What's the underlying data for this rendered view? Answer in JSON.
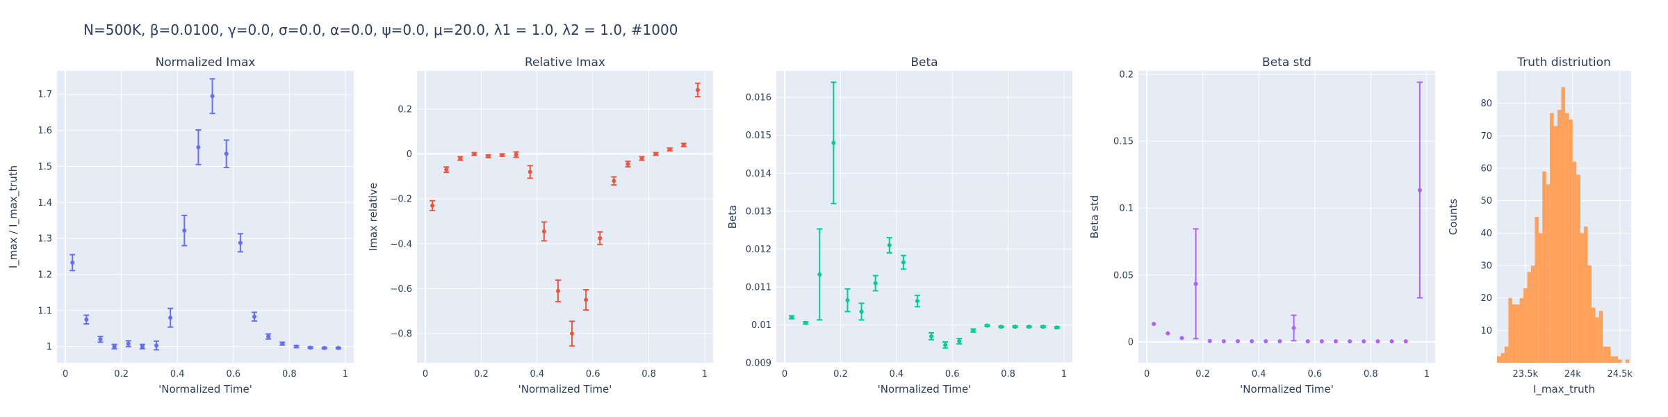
{
  "page": {
    "title": "N=500K, β=0.0100, γ=0.0, σ=0.0,  α=0.0, ψ=0.0, μ=20.0, λ1 = 1.0, λ2 = 1.0, #1000"
  },
  "chart_data": [
    {
      "type": "scatter",
      "title": "Normalized Imax",
      "xlabel": "'Normalized Time'",
      "ylabel": "I_max / I_max_truth",
      "xlim": [
        -0.03,
        1.03
      ],
      "ylim": [
        0.955,
        1.765
      ],
      "xticks": [
        0,
        0.2,
        0.4,
        0.6,
        0.8,
        1
      ],
      "xtick_labels": [
        "0",
        "0.2",
        "0.4",
        "0.6",
        "0.8",
        "1"
      ],
      "yticks": [
        1,
        1.1,
        1.2,
        1.3,
        1.4,
        1.5,
        1.6,
        1.7
      ],
      "ytick_labels": [
        "1",
        "1.1",
        "1.2",
        "1.3",
        "1.4",
        "1.5",
        "1.6",
        "1.7"
      ],
      "color": "#636efa",
      "grid": true,
      "series": [
        {
          "x": [
            0.025,
            0.075,
            0.125,
            0.175,
            0.225,
            0.275,
            0.325,
            0.375,
            0.425,
            0.475,
            0.525,
            0.575,
            0.625,
            0.675,
            0.725,
            0.775,
            0.825,
            0.875,
            0.925,
            0.975
          ],
          "y": [
            1.233,
            1.075,
            1.02,
            1.0,
            1.008,
            1.0,
            1.003,
            1.08,
            1.322,
            1.553,
            1.695,
            1.535,
            1.288,
            1.083,
            1.028,
            1.008,
            1.0,
            0.997,
            0.996,
            0.996
          ],
          "err": [
            0.022,
            0.012,
            0.008,
            0.006,
            0.008,
            0.006,
            0.012,
            0.026,
            0.042,
            0.048,
            0.048,
            0.038,
            0.025,
            0.012,
            0.007,
            0.004,
            0.003,
            0.002,
            0.002,
            0.002
          ]
        }
      ]
    },
    {
      "type": "scatter",
      "title": "Relative Imax",
      "xlabel": "'Normalized Time'",
      "ylabel": "Imax relative",
      "xlim": [
        -0.03,
        1.03
      ],
      "ylim": [
        -0.93,
        0.37
      ],
      "xticks": [
        0,
        0.2,
        0.4,
        0.6,
        0.8,
        1
      ],
      "xtick_labels": [
        "0",
        "0.2",
        "0.4",
        "0.6",
        "0.8",
        "1"
      ],
      "yticks": [
        -0.8,
        -0.6,
        -0.4,
        -0.2,
        0,
        0.2
      ],
      "ytick_labels": [
        "−0.8",
        "−0.6",
        "−0.4",
        "−0.2",
        "0",
        "0.2"
      ],
      "color": "#ef553b",
      "grid": true,
      "series": [
        {
          "x": [
            0.025,
            0.075,
            0.125,
            0.175,
            0.225,
            0.275,
            0.325,
            0.375,
            0.425,
            0.475,
            0.525,
            0.575,
            0.625,
            0.675,
            0.725,
            0.775,
            0.825,
            0.875,
            0.925,
            0.975
          ],
          "y": [
            -0.23,
            -0.07,
            -0.02,
            0.0,
            -0.01,
            -0.005,
            -0.003,
            -0.08,
            -0.345,
            -0.61,
            -0.8,
            -0.65,
            -0.375,
            -0.12,
            -0.045,
            -0.02,
            0.0,
            0.02,
            0.04,
            0.285
          ],
          "err": [
            0.022,
            0.012,
            0.008,
            0.006,
            0.006,
            0.005,
            0.012,
            0.028,
            0.042,
            0.048,
            0.055,
            0.045,
            0.028,
            0.018,
            0.012,
            0.008,
            0.006,
            0.006,
            0.007,
            0.03
          ]
        }
      ]
    },
    {
      "type": "scatter",
      "title": "Beta",
      "xlabel": "'Normalized Time'",
      "ylabel": "Beta",
      "xlim": [
        -0.03,
        1.03
      ],
      "ylim": [
        0.009,
        0.0167
      ],
      "xticks": [
        0,
        0.2,
        0.4,
        0.6,
        0.8,
        1
      ],
      "xtick_labels": [
        "0",
        "0.2",
        "0.4",
        "0.6",
        "0.8",
        "1"
      ],
      "yticks": [
        0.009,
        0.01,
        0.011,
        0.012,
        0.013,
        0.014,
        0.015,
        0.016
      ],
      "ytick_labels": [
        "0.009",
        "0.01",
        "0.011",
        "0.012",
        "0.013",
        "0.014",
        "0.015",
        "0.016"
      ],
      "color": "#00cc96",
      "grid": true,
      "series": [
        {
          "x": [
            0.025,
            0.075,
            0.125,
            0.175,
            0.225,
            0.275,
            0.325,
            0.375,
            0.425,
            0.475,
            0.525,
            0.575,
            0.625,
            0.675,
            0.725,
            0.775,
            0.825,
            0.875,
            0.925,
            0.975
          ],
          "y": [
            0.0102,
            0.01005,
            0.01133,
            0.0148,
            0.01065,
            0.01035,
            0.0111,
            0.0121,
            0.01165,
            0.01063,
            0.0097,
            0.00947,
            0.00957,
            0.00985,
            0.00998,
            0.00995,
            0.00995,
            0.00995,
            0.00995,
            0.00993
          ],
          "err": [
            4e-05,
            3e-05,
            0.0012,
            0.0016,
            0.0003,
            0.00022,
            0.0002,
            0.0002,
            0.00018,
            0.00015,
            9e-05,
            8e-05,
            7e-05,
            4e-05,
            2e-05,
            2e-05,
            2e-05,
            2e-05,
            2e-05,
            2e-05
          ]
        }
      ]
    },
    {
      "type": "scatter",
      "title": "Beta std",
      "xlabel": "'Normalized Time'",
      "ylabel": "Beta std",
      "xlim": [
        -0.03,
        1.03
      ],
      "ylim": [
        -0.0155,
        0.2025
      ],
      "xticks": [
        0,
        0.2,
        0.4,
        0.6,
        0.8,
        1
      ],
      "xtick_labels": [
        "0",
        "0.2",
        "0.4",
        "0.6",
        "0.8",
        "1"
      ],
      "yticks": [
        0,
        0.05,
        0.1,
        0.15,
        0.2
      ],
      "ytick_labels": [
        "0",
        "0.05",
        "0.1",
        "0.15",
        "0.2"
      ],
      "color": "#ab63fa",
      "grid": true,
      "series": [
        {
          "x": [
            0.025,
            0.075,
            0.125,
            0.175,
            0.225,
            0.275,
            0.325,
            0.375,
            0.425,
            0.475,
            0.525,
            0.575,
            0.625,
            0.675,
            0.725,
            0.775,
            0.825,
            0.875,
            0.925,
            0.975
          ],
          "y": [
            0.0135,
            0.0065,
            0.003,
            0.0435,
            0.0008,
            0.0006,
            0.0006,
            0.0006,
            0.0006,
            0.0006,
            0.0105,
            0.0005,
            0.0005,
            0.0005,
            0.0005,
            0.0005,
            0.0005,
            0.0005,
            0.0005,
            0.1135
          ],
          "err": [
            0.0,
            0.0,
            0.0,
            0.041,
            0.0,
            0.0,
            0.0,
            0.0,
            0.0,
            0.0,
            0.0095,
            0.0,
            0.0,
            0.0,
            0.0,
            0.0,
            0.0,
            0.0,
            0.0,
            0.0805
          ]
        }
      ]
    },
    {
      "type": "bar",
      "title": "Truth distriution",
      "xlabel": "I_max_truth",
      "ylabel": "Counts",
      "xlim": [
        23200,
        24620
      ],
      "ylim": [
        0,
        90
      ],
      "xticks": [
        23500,
        24000,
        24500
      ],
      "xtick_labels": [
        "23.5k",
        "24k",
        "24.5k"
      ],
      "yticks": [
        10,
        20,
        30,
        40,
        50,
        60,
        70,
        80
      ],
      "ytick_labels": [
        "10",
        "20",
        "30",
        "40",
        "50",
        "60",
        "70",
        "80"
      ],
      "color": "#ffa15a",
      "grid": true,
      "bin_width": 40,
      "bin_start": 23200,
      "counts": [
        2,
        3,
        5,
        20,
        18,
        18,
        20,
        23,
        28,
        30,
        45,
        40,
        59,
        55,
        77,
        73,
        78,
        85,
        77,
        75,
        62,
        58,
        40,
        42,
        30,
        17,
        14,
        16,
        5,
        5,
        2,
        2,
        1,
        0,
        1
      ]
    }
  ]
}
